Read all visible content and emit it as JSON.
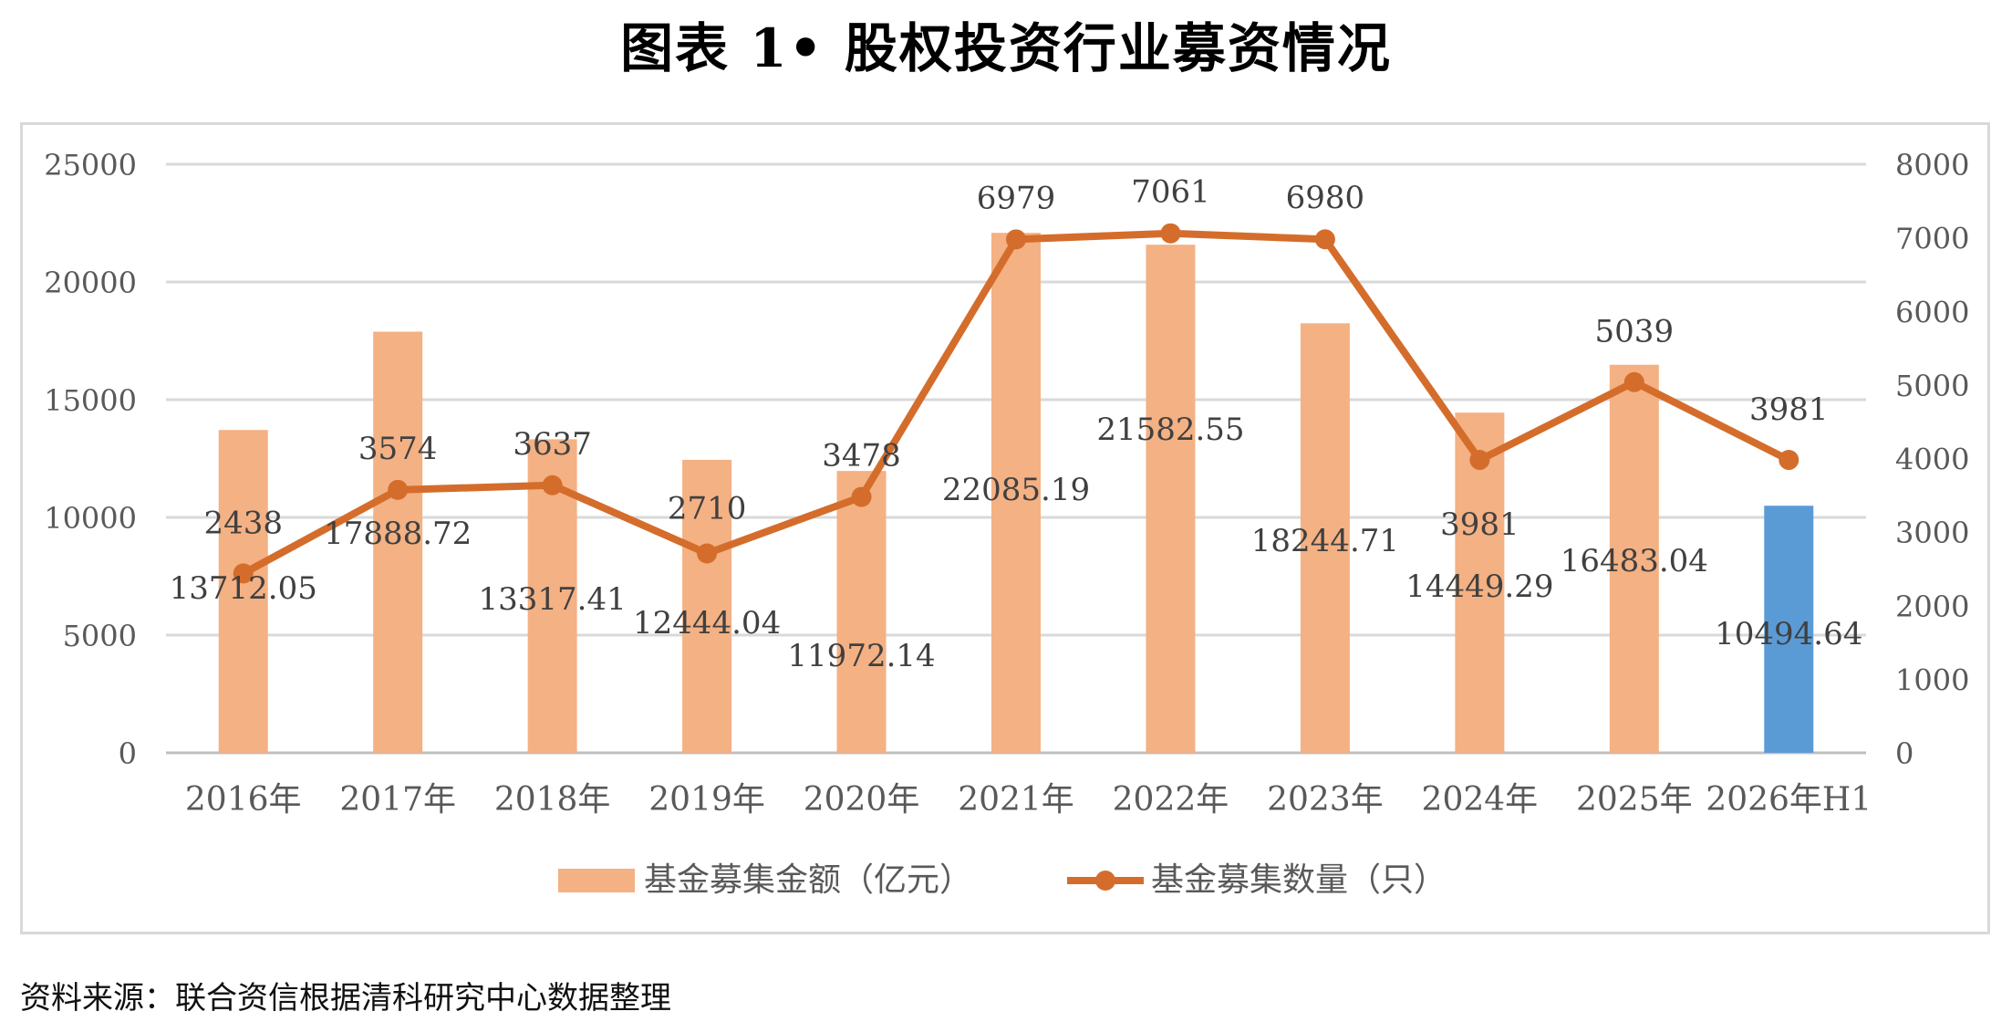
{
  "title": "图表 1• 股权投资行业募资情况",
  "source": "资料来源：联合资信根据清科研究中心数据整理",
  "colors": {
    "bar": "#f4b183",
    "bar_highlight": "#5b9bd5",
    "line": "#d46d2b",
    "grid": "#d9d9d9",
    "axis_text": "#595959",
    "label_text": "#404040"
  },
  "chart_data": {
    "type": "bar",
    "categories": [
      "2016年",
      "2017年",
      "2018年",
      "2019年",
      "2020年",
      "2021年",
      "2022年",
      "2023年",
      "2024年",
      "2025年",
      "2026年H1"
    ],
    "series": [
      {
        "name": "基金募集金额（亿元）",
        "type": "bar",
        "axis": "left",
        "values": [
          13712.05,
          17888.72,
          13317.41,
          12444.04,
          11972.14,
          22085.19,
          21582.55,
          18244.71,
          14449.29,
          16483.04,
          10494.64
        ],
        "labels": [
          "13712.05",
          "17888.72",
          "13317.41",
          "12444.04",
          "11972.14",
          "22085.19",
          "21582.55",
          "18244.71",
          "14449.29",
          "16483.04",
          "10494.64"
        ]
      },
      {
        "name": "基金募集数量（只）",
        "type": "line",
        "axis": "right",
        "values": [
          2438,
          3574,
          3637,
          2710,
          3478,
          6979,
          7061,
          6980,
          3981,
          5039,
          3981
        ],
        "labels": [
          "2438",
          "3574",
          "3637",
          "2710",
          "3478",
          "6979",
          "7061",
          "6980",
          "3981",
          "5039",
          "3981"
        ]
      }
    ],
    "y_left": {
      "range": [
        0,
        25000
      ],
      "ticks": [
        "0",
        "5000",
        "10000",
        "15000",
        "20000",
        "25000"
      ]
    },
    "y_right": {
      "range": [
        0,
        8000
      ],
      "ticks": [
        "0",
        "1000",
        "2000",
        "3000",
        "4000",
        "5000",
        "6000",
        "7000",
        "8000"
      ]
    },
    "highlight_index": 10,
    "grid": true,
    "legend_position": "bottom"
  }
}
